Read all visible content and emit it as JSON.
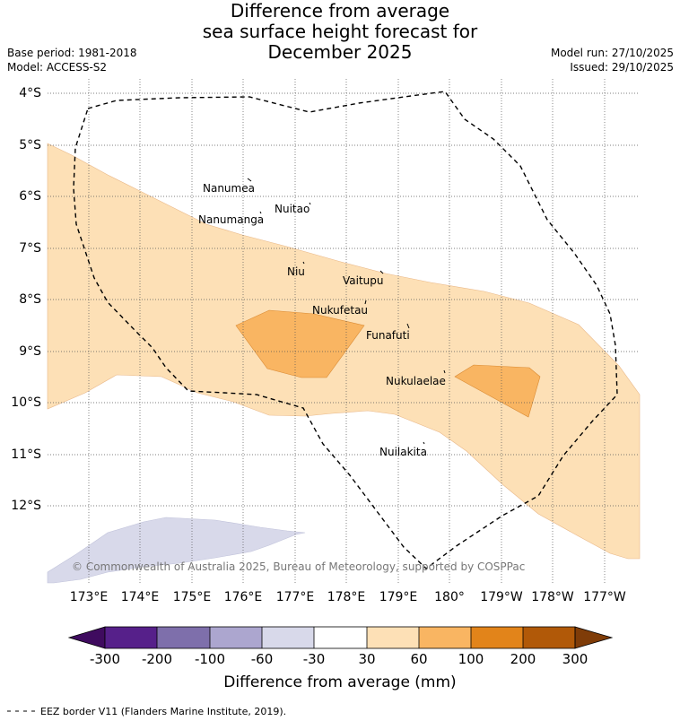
{
  "title": {
    "line1": "Difference from average",
    "line2": "sea surface height forecast for",
    "line3": "December 2025"
  },
  "meta": {
    "base_period": "Base period: 1981-2018",
    "model": "Model: ACCESS-S2",
    "model_run": "Model run: 27/10/2025",
    "issued": "Issued: 29/10/2025"
  },
  "map": {
    "lat_labels": [
      "4°S",
      "5°S",
      "6°S",
      "7°S",
      "8°S",
      "9°S",
      "10°S",
      "11°S",
      "12°S"
    ],
    "lon_labels": [
      "173°E",
      "174°E",
      "175°E",
      "176°E",
      "177°E",
      "178°E",
      "179°E",
      "180°",
      "179°W",
      "178°W",
      "177°W"
    ],
    "places": [
      {
        "name": "Nanumea"
      },
      {
        "name": "Nanumanga"
      },
      {
        "name": "Nuitao"
      },
      {
        "name": "Niu"
      },
      {
        "name": "Vaitupu"
      },
      {
        "name": "Nukufetau"
      },
      {
        "name": "Funafuti"
      },
      {
        "name": "Nukulaelae"
      },
      {
        "name": "Nuilakita"
      }
    ],
    "copyright": "© Commonwealth of Australia 2025, Bureau of Meteorology, supported by COSPPac",
    "colors": {
      "band_30_60": "#fde0b6",
      "band_60_100": "#f9b562",
      "band_neg_60_30": "#d8d9ea",
      "eez_line": "#000000",
      "grid": "#555555"
    }
  },
  "colorbar": {
    "tick_labels": [
      "-300",
      "-200",
      "-100",
      "-60",
      "-30",
      "30",
      "60",
      "100",
      "200",
      "300"
    ],
    "colors": [
      "#3f0b5f",
      "#56208a",
      "#7e6fab",
      "#aca6cf",
      "#d8d9ea",
      "#ffffff",
      "#fde0b6",
      "#f9b562",
      "#e2841a",
      "#b15908",
      "#7f3c08"
    ],
    "title": "Difference from average (mm)"
  },
  "footer": {
    "legend_text": "EEZ border V11 (Flanders Marine Institute, 2019)."
  }
}
